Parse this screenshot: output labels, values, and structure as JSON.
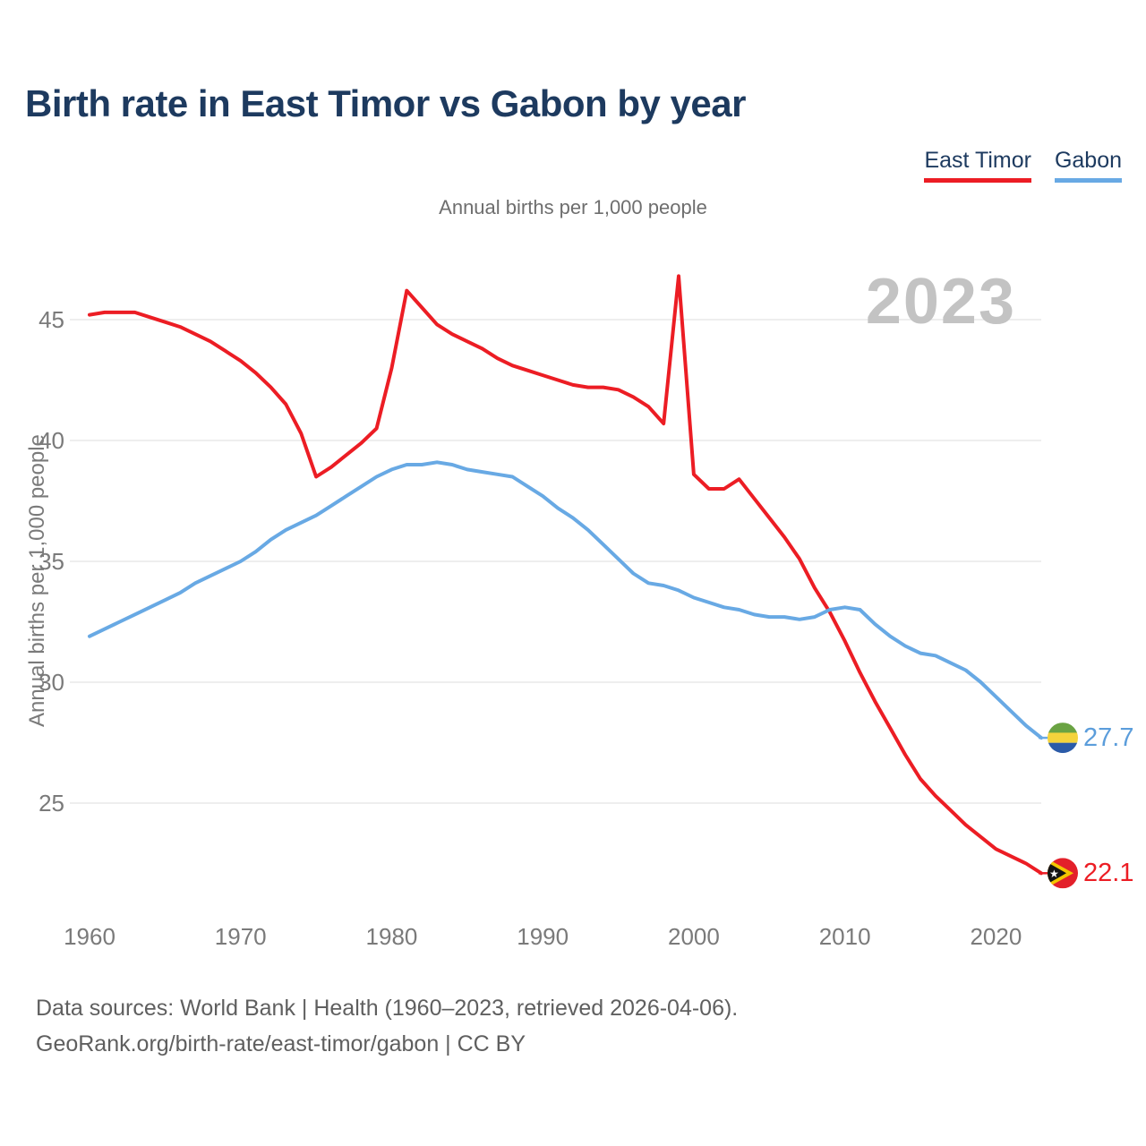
{
  "header": {
    "title": "Birth rate in East Timor vs Gabon by year"
  },
  "legend": [
    {
      "label": "East Timor",
      "color": "#ec1d24"
    },
    {
      "label": "Gabon",
      "color": "#68a9e4"
    }
  ],
  "chart": {
    "subtitle": "Annual births per 1,000 people",
    "watermark": "2023",
    "y_axis_title": "Annual births per 1,000 people",
    "y_ticks": [
      45,
      40,
      35,
      30,
      25
    ],
    "x_ticks": [
      1960,
      1970,
      1980,
      1990,
      2000,
      2010,
      2020
    ],
    "end_labels": [
      {
        "series": "Gabon",
        "value": "27.7"
      },
      {
        "series": "East Timor",
        "value": "22.1"
      }
    ]
  },
  "chart_data": {
    "type": "line",
    "title": "Birth rate in East Timor vs Gabon by year",
    "subtitle": "Annual births per 1,000 people",
    "ylabel": "Annual births per 1,000 people",
    "ylim": [
      21.5,
      47.5
    ],
    "xlim": [
      1960,
      2023
    ],
    "grid": true,
    "legend_position": "top-right",
    "x": [
      1960,
      1961,
      1962,
      1963,
      1964,
      1965,
      1966,
      1967,
      1968,
      1969,
      1970,
      1971,
      1972,
      1973,
      1974,
      1975,
      1976,
      1977,
      1978,
      1979,
      1980,
      1981,
      1982,
      1983,
      1984,
      1985,
      1986,
      1987,
      1988,
      1989,
      1990,
      1991,
      1992,
      1993,
      1994,
      1995,
      1996,
      1997,
      1998,
      1999,
      2000,
      2001,
      2002,
      2003,
      2004,
      2005,
      2006,
      2007,
      2008,
      2009,
      2010,
      2011,
      2012,
      2013,
      2014,
      2015,
      2016,
      2017,
      2018,
      2019,
      2020,
      2021,
      2022,
      2023
    ],
    "series": [
      {
        "name": "East Timor",
        "color": "#ec1d24",
        "end_value": 22.1,
        "values": [
          45.2,
          45.3,
          45.3,
          45.3,
          45.1,
          44.9,
          44.7,
          44.4,
          44.1,
          43.7,
          43.3,
          42.8,
          42.2,
          41.5,
          40.3,
          38.5,
          38.9,
          39.4,
          39.9,
          40.5,
          43.0,
          46.2,
          45.5,
          44.8,
          44.4,
          44.1,
          43.8,
          43.4,
          43.1,
          42.9,
          42.7,
          42.5,
          42.3,
          42.2,
          42.2,
          42.1,
          41.8,
          41.4,
          40.7,
          46.8,
          38.6,
          38.0,
          38.0,
          38.4,
          37.6,
          36.8,
          36.0,
          35.1,
          33.9,
          32.9,
          31.7,
          30.4,
          29.2,
          28.1,
          27.0,
          26.0,
          25.3,
          24.7,
          24.1,
          23.6,
          23.1,
          22.8,
          22.5,
          22.1
        ]
      },
      {
        "name": "Gabon",
        "color": "#68a9e4",
        "end_value": 27.7,
        "values": [
          31.9,
          32.2,
          32.5,
          32.8,
          33.1,
          33.4,
          33.7,
          34.1,
          34.4,
          34.7,
          35.0,
          35.4,
          35.9,
          36.3,
          36.6,
          36.9,
          37.3,
          37.7,
          38.1,
          38.5,
          38.8,
          39.0,
          39.0,
          39.1,
          39.0,
          38.8,
          38.7,
          38.6,
          38.5,
          38.1,
          37.7,
          37.2,
          36.8,
          36.3,
          35.7,
          35.1,
          34.5,
          34.1,
          34.0,
          33.8,
          33.5,
          33.3,
          33.1,
          33.0,
          32.8,
          32.7,
          32.7,
          32.6,
          32.7,
          33.0,
          33.1,
          33.0,
          32.4,
          31.9,
          31.5,
          31.2,
          31.1,
          30.8,
          30.5,
          30.0,
          29.4,
          28.8,
          28.2,
          27.7
        ]
      }
    ]
  },
  "footer": {
    "line1": "Data sources: World Bank | Health (1960–2023, retrieved 2026-04-06).",
    "line2": "GeoRank.org/birth-rate/east-timor/gabon | CC BY"
  }
}
